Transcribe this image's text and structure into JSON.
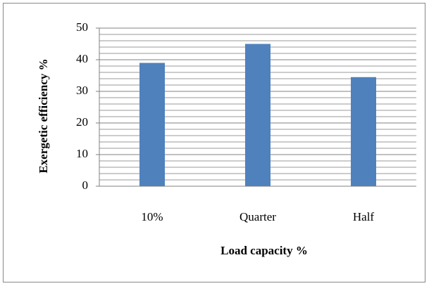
{
  "chart_data": {
    "type": "bar",
    "x_label": "Load capacity %",
    "y_label": "Exergetic efficiency %",
    "categories": [
      "10%",
      "Quarter",
      "Half"
    ],
    "values": [
      39,
      45,
      34.5
    ],
    "color": "#4f81bd",
    "ylim": [
      0,
      50
    ],
    "yticks": [
      0,
      10,
      20,
      30,
      40,
      50
    ],
    "grid": true,
    "minor_grid": 5
  }
}
